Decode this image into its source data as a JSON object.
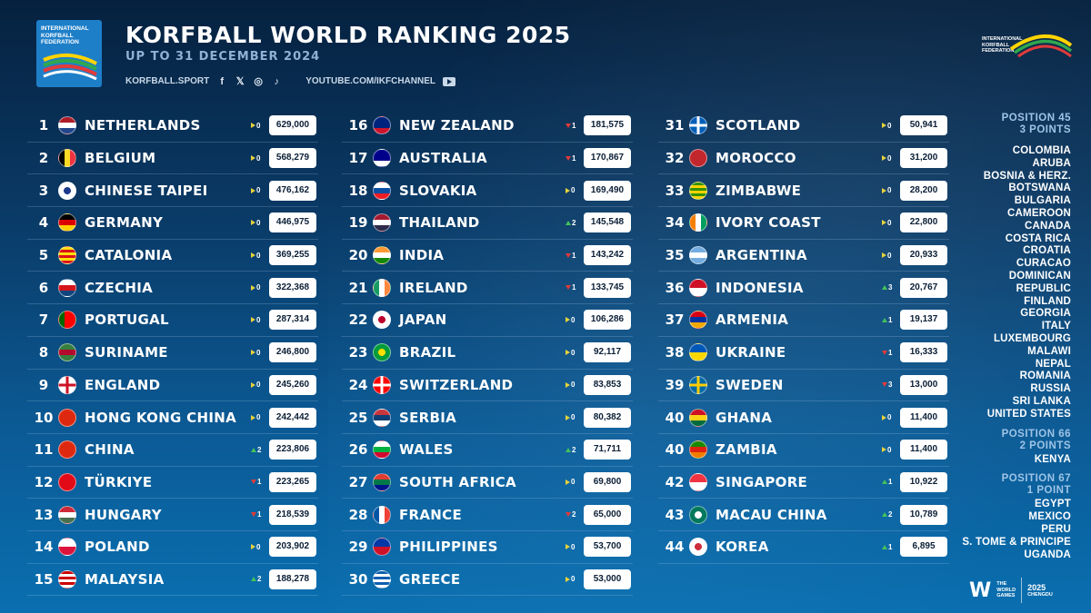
{
  "header": {
    "title": "KORFBALL WORLD RANKING 2025",
    "subtitle": "UP TO 31 DECEMBER 2024",
    "website": "KORFBALL.SPORT",
    "youtube": "YOUTUBE.COM/IKFCHANNEL",
    "social_icons": [
      "facebook-icon",
      "x-icon",
      "instagram-icon",
      "tiktok-icon",
      "youtube-icon"
    ]
  },
  "logo": {
    "line1": "INTERNATIONAL",
    "line2": "KORFBALL",
    "line3": "FEDERATION"
  },
  "colors": {
    "up": "#44c25a",
    "down": "#e03a3a",
    "same": "#e6d23a",
    "background": "#0a3a66"
  },
  "rankings": [
    {
      "rank": "1",
      "country": "NETHERLANDS",
      "trend": "same",
      "change": "0",
      "points": "629,000",
      "flag": [
        "#ae1c28",
        "#ffffff",
        "#21468b"
      ],
      "flag_dir": "h"
    },
    {
      "rank": "2",
      "country": "BELGIUM",
      "trend": "same",
      "change": "0",
      "points": "568,279",
      "flag": [
        "#000000",
        "#fdda24",
        "#ef3340"
      ],
      "flag_dir": "v"
    },
    {
      "rank": "3",
      "country": "CHINESE TAIPEI",
      "trend": "same",
      "change": "0",
      "points": "476,162",
      "flag": [
        "#ffffff",
        "#1c3a8c",
        "#e8202a"
      ],
      "flag_dir": "c"
    },
    {
      "rank": "4",
      "country": "GERMANY",
      "trend": "same",
      "change": "0",
      "points": "446,975",
      "flag": [
        "#000000",
        "#dd0000",
        "#ffce00"
      ],
      "flag_dir": "h"
    },
    {
      "rank": "5",
      "country": "CATALONIA",
      "trend": "same",
      "change": "0",
      "points": "369,255",
      "flag": [
        "#fcdd09",
        "#da121a",
        "#fcdd09"
      ],
      "flag_dir": "s"
    },
    {
      "rank": "6",
      "country": "CZECHIA",
      "trend": "same",
      "change": "0",
      "points": "322,368",
      "flag": [
        "#ffffff",
        "#d7141a",
        "#11457e"
      ],
      "flag_dir": "h"
    },
    {
      "rank": "7",
      "country": "PORTUGAL",
      "trend": "same",
      "change": "0",
      "points": "287,314",
      "flag": [
        "#006600",
        "#ff0000",
        "#ff0000"
      ],
      "flag_dir": "v"
    },
    {
      "rank": "8",
      "country": "SURINAME",
      "trend": "same",
      "change": "0",
      "points": "246,800",
      "flag": [
        "#377e3f",
        "#b40a2d",
        "#377e3f"
      ],
      "flag_dir": "h"
    },
    {
      "rank": "9",
      "country": "ENGLAND",
      "trend": "same",
      "change": "0",
      "points": "245,260",
      "flag": [
        "#ffffff",
        "#ce1124",
        "#ffffff"
      ],
      "flag_dir": "x"
    },
    {
      "rank": "10",
      "country": "HONG KONG CHINA",
      "trend": "same",
      "change": "0",
      "points": "242,442",
      "flag": [
        "#de2910",
        "#de2910",
        "#de2910"
      ],
      "flag_dir": "h"
    },
    {
      "rank": "11",
      "country": "CHINA",
      "trend": "up",
      "change": "2",
      "points": "223,806",
      "flag": [
        "#de2910",
        "#de2910",
        "#de2910"
      ],
      "flag_dir": "h"
    },
    {
      "rank": "12",
      "country": "TÜRKIYE",
      "trend": "down",
      "change": "1",
      "points": "223,265",
      "flag": [
        "#e30a17",
        "#e30a17",
        "#e30a17"
      ],
      "flag_dir": "h"
    },
    {
      "rank": "13",
      "country": "HUNGARY",
      "trend": "down",
      "change": "1",
      "points": "218,539",
      "flag": [
        "#ce2939",
        "#ffffff",
        "#477050"
      ],
      "flag_dir": "h"
    },
    {
      "rank": "14",
      "country": "POLAND",
      "trend": "same",
      "change": "0",
      "points": "203,902",
      "flag": [
        "#ffffff",
        "#dc143c",
        "#dc143c"
      ],
      "flag_dir": "h2"
    },
    {
      "rank": "15",
      "country": "MALAYSIA",
      "trend": "up",
      "change": "2",
      "points": "188,278",
      "flag": [
        "#cc0001",
        "#ffffff",
        "#010066"
      ],
      "flag_dir": "s"
    },
    {
      "rank": "16",
      "country": "NEW ZEALAND",
      "trend": "down",
      "change": "1",
      "points": "181,575",
      "flag": [
        "#00247d",
        "#00247d",
        "#cc142b"
      ],
      "flag_dir": "h"
    },
    {
      "rank": "17",
      "country": "AUSTRALIA",
      "trend": "down",
      "change": "1",
      "points": "170,867",
      "flag": [
        "#00008b",
        "#00008b",
        "#ffffff"
      ],
      "flag_dir": "h"
    },
    {
      "rank": "18",
      "country": "SLOVAKIA",
      "trend": "same",
      "change": "0",
      "points": "169,490",
      "flag": [
        "#ffffff",
        "#0b4ea2",
        "#ee1c25"
      ],
      "flag_dir": "h"
    },
    {
      "rank": "19",
      "country": "THAILAND",
      "trend": "up",
      "change": "2",
      "points": "145,548",
      "flag": [
        "#a51931",
        "#ffffff",
        "#2d2a4a"
      ],
      "flag_dir": "h"
    },
    {
      "rank": "20",
      "country": "INDIA",
      "trend": "down",
      "change": "1",
      "points": "143,242",
      "flag": [
        "#ff9933",
        "#ffffff",
        "#138808"
      ],
      "flag_dir": "h"
    },
    {
      "rank": "21",
      "country": "IRELAND",
      "trend": "down",
      "change": "1",
      "points": "133,745",
      "flag": [
        "#169b62",
        "#ffffff",
        "#ff883e"
      ],
      "flag_dir": "v"
    },
    {
      "rank": "22",
      "country": "JAPAN",
      "trend": "same",
      "change": "0",
      "points": "106,286",
      "flag": [
        "#ffffff",
        "#bc002d",
        "#ffffff"
      ],
      "flag_dir": "c"
    },
    {
      "rank": "23",
      "country": "BRAZIL",
      "trend": "same",
      "change": "0",
      "points": "92,117",
      "flag": [
        "#009c3b",
        "#ffdf00",
        "#002776"
      ],
      "flag_dir": "c"
    },
    {
      "rank": "24",
      "country": "SWITZERLAND",
      "trend": "same",
      "change": "0",
      "points": "83,853",
      "flag": [
        "#ff0000",
        "#ffffff",
        "#ff0000"
      ],
      "flag_dir": "x"
    },
    {
      "rank": "25",
      "country": "SERBIA",
      "trend": "same",
      "change": "0",
      "points": "80,382",
      "flag": [
        "#c6363c",
        "#0c4076",
        "#ffffff"
      ],
      "flag_dir": "h"
    },
    {
      "rank": "26",
      "country": "WALES",
      "trend": "up",
      "change": "2",
      "points": "71,711",
      "flag": [
        "#ffffff",
        "#00b140",
        "#d30731"
      ],
      "flag_dir": "h"
    },
    {
      "rank": "27",
      "country": "SOUTH AFRICA",
      "trend": "same",
      "change": "0",
      "points": "69,800",
      "flag": [
        "#e03c31",
        "#007749",
        "#001489"
      ],
      "flag_dir": "h"
    },
    {
      "rank": "28",
      "country": "FRANCE",
      "trend": "down",
      "change": "2",
      "points": "65,000",
      "flag": [
        "#0055a4",
        "#ffffff",
        "#ef4135"
      ],
      "flag_dir": "v"
    },
    {
      "rank": "29",
      "country": "PHILIPPINES",
      "trend": "same",
      "change": "0",
      "points": "53,700",
      "flag": [
        "#0038a8",
        "#ce1126",
        "#ffffff"
      ],
      "flag_dir": "h2"
    },
    {
      "rank": "30",
      "country": "GREECE",
      "trend": "same",
      "change": "0",
      "points": "53,000",
      "flag": [
        "#0d5eaf",
        "#ffffff",
        "#0d5eaf"
      ],
      "flag_dir": "s"
    },
    {
      "rank": "31",
      "country": "SCOTLAND",
      "trend": "same",
      "change": "0",
      "points": "50,941",
      "flag": [
        "#005eb8",
        "#ffffff",
        "#005eb8"
      ],
      "flag_dir": "x"
    },
    {
      "rank": "32",
      "country": "MOROCCO",
      "trend": "same",
      "change": "0",
      "points": "31,200",
      "flag": [
        "#c1272d",
        "#c1272d",
        "#006233"
      ],
      "flag_dir": "c"
    },
    {
      "rank": "33",
      "country": "ZIMBABWE",
      "trend": "same",
      "change": "0",
      "points": "28,200",
      "flag": [
        "#319208",
        "#ffd200",
        "#de2010"
      ],
      "flag_dir": "s"
    },
    {
      "rank": "34",
      "country": "IVORY COAST",
      "trend": "same",
      "change": "0",
      "points": "22,800",
      "flag": [
        "#f77f00",
        "#ffffff",
        "#009e60"
      ],
      "flag_dir": "v"
    },
    {
      "rank": "35",
      "country": "ARGENTINA",
      "trend": "same",
      "change": "0",
      "points": "20,933",
      "flag": [
        "#74acdf",
        "#ffffff",
        "#74acdf"
      ],
      "flag_dir": "h"
    },
    {
      "rank": "36",
      "country": "INDONESIA",
      "trend": "up",
      "change": "3",
      "points": "20,767",
      "flag": [
        "#ce1126",
        "#ffffff",
        "#ffffff"
      ],
      "flag_dir": "h2"
    },
    {
      "rank": "37",
      "country": "ARMENIA",
      "trend": "up",
      "change": "1",
      "points": "19,137",
      "flag": [
        "#d90012",
        "#0033a0",
        "#f2a800"
      ],
      "flag_dir": "h"
    },
    {
      "rank": "38",
      "country": "UKRAINE",
      "trend": "down",
      "change": "1",
      "points": "16,333",
      "flag": [
        "#0057b7",
        "#ffd700",
        "#ffd700"
      ],
      "flag_dir": "h2"
    },
    {
      "rank": "39",
      "country": "SWEDEN",
      "trend": "down",
      "change": "3",
      "points": "13,000",
      "flag": [
        "#006aa7",
        "#fecc00",
        "#006aa7"
      ],
      "flag_dir": "x"
    },
    {
      "rank": "40",
      "country": "GHANA",
      "trend": "same",
      "change": "0",
      "points": "11,400",
      "flag": [
        "#ce1126",
        "#fcd116",
        "#006b3f"
      ],
      "flag_dir": "h"
    },
    {
      "rank": "40",
      "country": "ZAMBIA",
      "trend": "same",
      "change": "0",
      "points": "11,400",
      "flag": [
        "#198a00",
        "#de2010",
        "#ef7d00"
      ],
      "flag_dir": "h"
    },
    {
      "rank": "42",
      "country": "SINGAPORE",
      "trend": "up",
      "change": "1",
      "points": "10,922",
      "flag": [
        "#ef3340",
        "#ffffff",
        "#ffffff"
      ],
      "flag_dir": "h2"
    },
    {
      "rank": "43",
      "country": "MACAU CHINA",
      "trend": "up",
      "change": "2",
      "points": "10,789",
      "flag": [
        "#00785e",
        "#ffffff",
        "#ffd700"
      ],
      "flag_dir": "c"
    },
    {
      "rank": "44",
      "country": "KOREA",
      "trend": "up",
      "change": "1",
      "points": "6,895",
      "flag": [
        "#ffffff",
        "#cd2e3a",
        "#0047a0"
      ],
      "flag_dir": "c"
    }
  ],
  "side": {
    "groups": [
      {
        "position": "POSITION 45",
        "points": "3 POINTS",
        "countries": [
          "COLOMBIA",
          "ARUBA",
          "BOSNIA & HERZ.",
          "BOTSWANA",
          "BULGARIA",
          "CAMEROON",
          "CANADA",
          "COSTA RICA",
          "CROATIA",
          "CURACAO",
          "DOMINICAN",
          "REPUBLIC",
          "FINLAND",
          "GEORGIA",
          "ITALY",
          "LUXEMBOURG",
          "MALAWI",
          "NEPAL",
          "ROMANIA",
          "RUSSIA",
          "SRI LANKA",
          "UNITED STATES"
        ]
      },
      {
        "position": "POSITION 66",
        "points": "2 POINTS",
        "countries": [
          "KENYA"
        ]
      },
      {
        "position": "POSITION 67",
        "points": "1 POINT",
        "countries": [
          "EGYPT",
          "MEXICO",
          "PERU",
          "S. TOME & PRINCIPE",
          "UGANDA"
        ]
      }
    ]
  },
  "footer": {
    "wg_line1": "THE",
    "wg_line2": "WORLD",
    "wg_line3": "GAMES",
    "year": "2025",
    "city": "CHENGDU"
  }
}
